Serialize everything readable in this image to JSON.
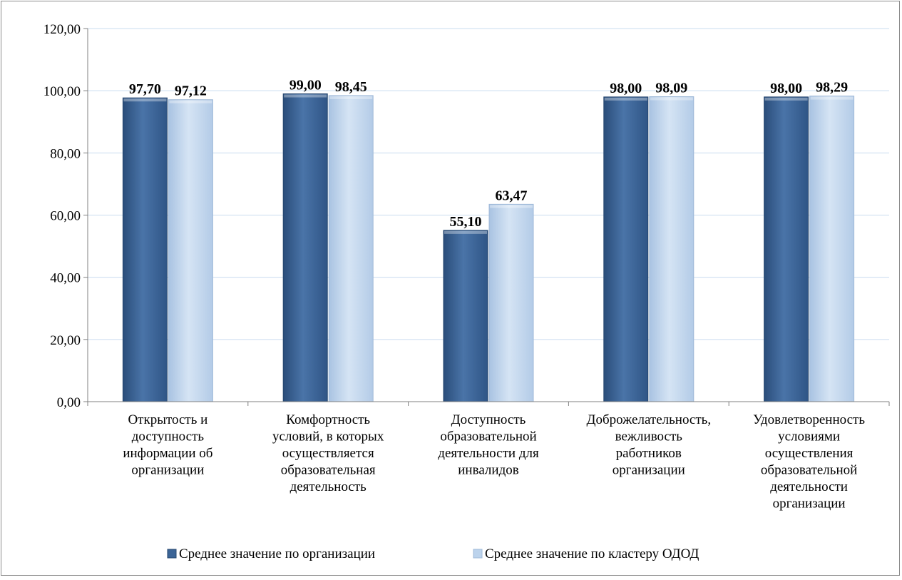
{
  "chart_data": {
    "type": "bar",
    "categories": [
      [
        "Открытость и",
        "доступность",
        "информации об",
        "организации"
      ],
      [
        "Комфортность",
        "условий, в которых",
        "осуществляется",
        "образовательная",
        "деятельность"
      ],
      [
        "Доступность",
        "образовательной",
        "деятельности для",
        "инвалидов"
      ],
      [
        "Доброжелательность,",
        "вежливость",
        "работников",
        "организации"
      ],
      [
        "Удовлетворенность",
        "условиями",
        "осуществления",
        "образовательной",
        "деятельности",
        "организации"
      ]
    ],
    "series": [
      {
        "name": "Среднее значение по организации",
        "values": [
          97.7,
          99.0,
          55.1,
          98.0,
          98.0
        ],
        "labels": [
          "97,70",
          "99,00",
          "55,10",
          "98,00",
          "98,00"
        ],
        "color": "#3b6496"
      },
      {
        "name": "Среднее значение по кластеру ОДОД",
        "values": [
          97.12,
          98.45,
          63.47,
          98.09,
          98.29
        ],
        "labels": [
          "97,12",
          "98,45",
          "63,47",
          "98,09",
          "98,29"
        ],
        "color": "#bcd3ec"
      }
    ],
    "ylim": [
      0,
      120
    ],
    "yticks": [
      "0,00",
      "20,00",
      "40,00",
      "60,00",
      "80,00",
      "100,00",
      "120,00"
    ],
    "grid": true,
    "legend": "bottom"
  }
}
